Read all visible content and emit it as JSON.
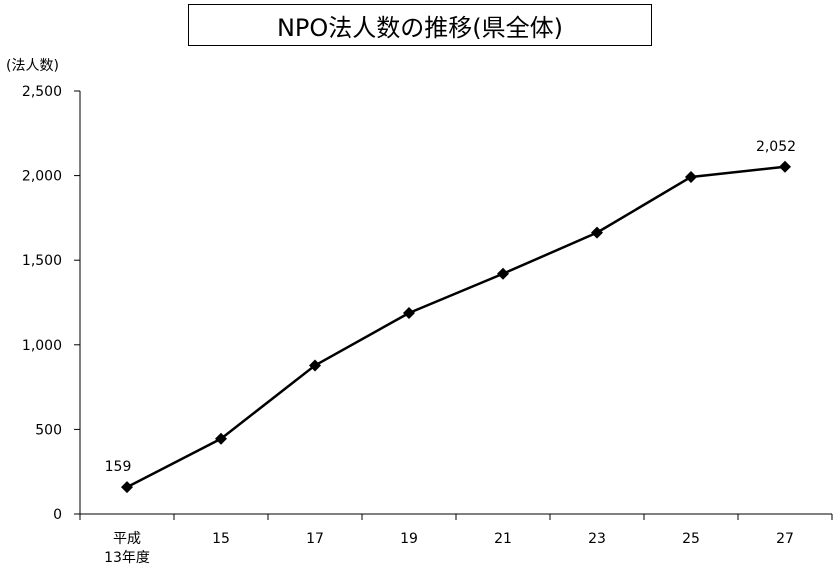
{
  "chart_data": {
    "type": "line",
    "title": "NPO法人数の推移(県全体)",
    "ylabel": "(法人数)",
    "xlabel": "",
    "categories": [
      "平成\n13年度",
      "15",
      "17",
      "19",
      "21",
      "23",
      "25",
      "27"
    ],
    "series": [
      {
        "values": [
          159,
          445,
          878,
          1188,
          1420,
          1663,
          1992,
          2052
        ]
      }
    ],
    "data_labels": [
      {
        "index": 0,
        "text": "159"
      },
      {
        "index": 7,
        "text": "2,052"
      }
    ],
    "ylim": [
      0,
      2500
    ],
    "yticks": [
      0,
      500,
      1000,
      1500,
      2000,
      2500
    ],
    "ytick_labels": [
      "0",
      "500",
      "1,000",
      "1,500",
      "2,000",
      "2,500"
    ],
    "grid": false,
    "legend": "none",
    "marker": "diamond",
    "color": "#000000"
  }
}
